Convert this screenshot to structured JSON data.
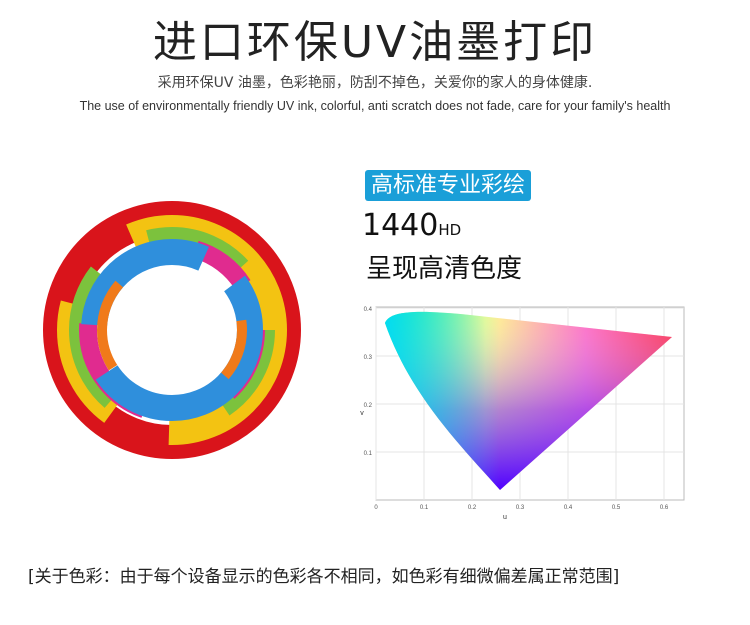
{
  "header": {
    "title": "进口环保UV油墨打印",
    "subtitle_cn": "采用环保UV 油墨，色彩艳丽，防刮不掉色，关爱你的家人的身体健康.",
    "subtitle_en": "The use of environmentally friendly UV ink, colorful, anti scratch does not fade, care for your family's health"
  },
  "feature": {
    "badge": "高标准专业彩绘",
    "resolution": "1440",
    "resolution_suffix": "HD",
    "caption": "呈现高清色度"
  },
  "diagram": {
    "y_ticks": [
      "0.4",
      "0.3",
      "0.2",
      "0.1"
    ],
    "x_ticks": [
      "0",
      "0.1",
      "0.2",
      "0.3",
      "0.4",
      "0.5",
      "0.6"
    ],
    "y_label": "v",
    "x_label": "u"
  },
  "footer": {
    "note": "[关于色彩：由于每个设备显示的色彩各不相同，如色彩有细微偏差属正常范围]"
  }
}
